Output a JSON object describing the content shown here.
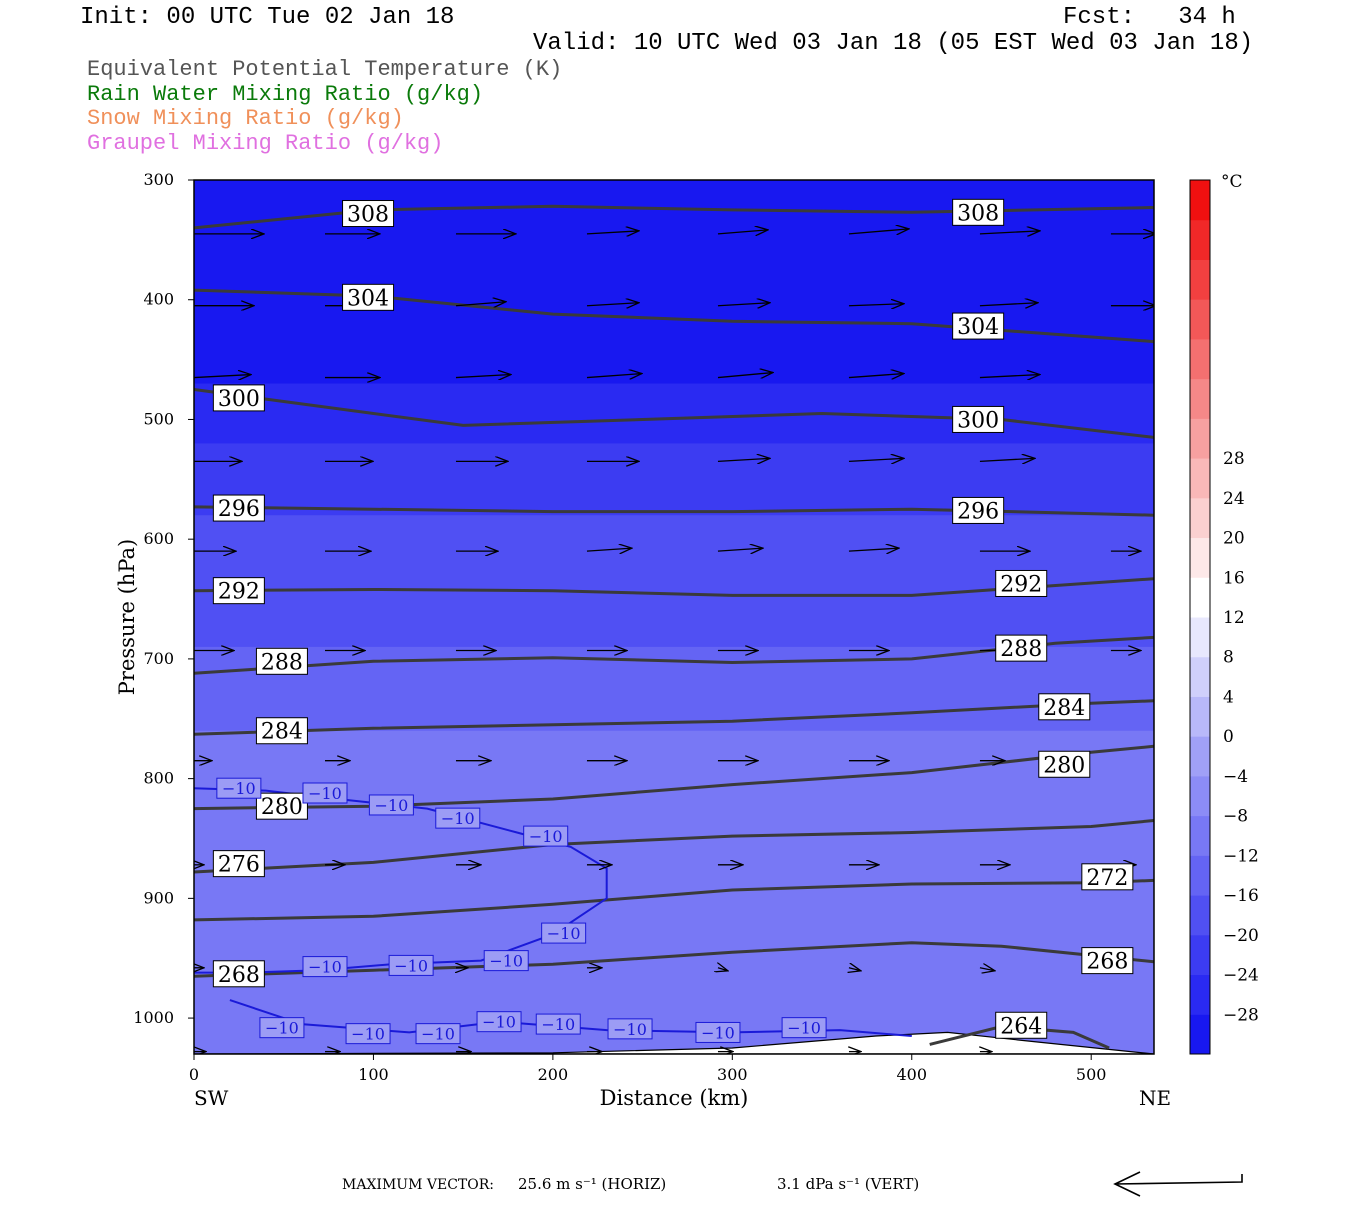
{
  "header": {
    "init": "Init: 00 UTC Tue 02 Jan 18",
    "fcst": "Fcst:   34 h",
    "valid": "Valid: 10 UTC Wed 03 Jan 18 (05 EST Wed 03 Jan 18)"
  },
  "legend": [
    {
      "label": "Equivalent Potential Temperature (K)",
      "color": "#555555"
    },
    {
      "label": "Rain Water Mixing Ratio (g/kg)",
      "color": "#0a7a0a"
    },
    {
      "label": "Snow Mixing Ratio (g/kg)",
      "color": "#f0905a"
    },
    {
      "label": "Graupel Mixing Ratio (g/kg)",
      "color": "#e070e0"
    }
  ],
  "chart_data": {
    "type": "contour cross-section",
    "xlabel": "Distance (km)",
    "ylabel": "Pressure (hPa)",
    "xlim": [
      0,
      535
    ],
    "ylim": [
      300,
      1030
    ],
    "y_scale": "linear, inverted",
    "x_ticks": [
      "0",
      "100",
      "200",
      "300",
      "400",
      "500"
    ],
    "y_ticks": [
      "300",
      "400",
      "500",
      "600",
      "700",
      "800",
      "900",
      "1000"
    ],
    "x_endpoints": {
      "left": "SW",
      "right": "NE"
    },
    "colorbar": {
      "unit": "°C",
      "levels": [
        -32,
        -28,
        -24,
        -20,
        -16,
        -12,
        -8,
        -4,
        0,
        4,
        8,
        12,
        16,
        20,
        24,
        28,
        32
      ],
      "tick_labels": [
        "28",
        "24",
        "20",
        "16",
        "12",
        "8",
        "4",
        "0",
        "−4",
        "−8",
        "−12",
        "−16",
        "−20",
        "−24",
        "−28"
      ],
      "colors": [
        "#1818f0",
        "#2a2af2",
        "#3c3cf2",
        "#5050f3",
        "#6464f4",
        "#7878f5",
        "#8c8cf6",
        "#a0a0f7",
        "#b8b8f9",
        "#d0d0fb",
        "#e8e8fd",
        "#ffffff",
        "#fde8e8",
        "#fbd0d0",
        "#f9b8b8",
        "#f7a0a0",
        "#f58888",
        "#f47070",
        "#f35858",
        "#f24040",
        "#f12828",
        "#f01010"
      ]
    },
    "temperature_bands": [
      {
        "p_top": 300,
        "p_bottom": 470,
        "temp_c": -30
      },
      {
        "p_top": 470,
        "p_bottom": 520,
        "temp_c": -28
      },
      {
        "p_top": 520,
        "p_bottom": 580,
        "temp_c": -24
      },
      {
        "p_top": 580,
        "p_bottom": 640,
        "temp_c": -20
      },
      {
        "p_top": 640,
        "p_bottom": 690,
        "temp_c": -17
      },
      {
        "p_top": 690,
        "p_bottom": 760,
        "temp_c": -14
      },
      {
        "p_top": 760,
        "p_bottom": 810,
        "temp_c": -12
      },
      {
        "p_top": 810,
        "p_bottom": 920,
        "temp_c": -9
      },
      {
        "p_top": 920,
        "p_bottom": 1030,
        "temp_c": -11
      }
    ],
    "theta_e_contours": [
      {
        "level": "308",
        "x": [
          0,
          100,
          200,
          300,
          400,
          535
        ],
        "p": [
          340,
          325,
          322,
          325,
          327,
          323
        ],
        "labels": [
          {
            "x": 97,
            "p": 328
          },
          {
            "x": 437,
            "p": 327
          }
        ]
      },
      {
        "level": "304",
        "x": [
          0,
          100,
          200,
          300,
          400,
          535
        ],
        "p": [
          392,
          397,
          412,
          418,
          420,
          435
        ],
        "labels": [
          {
            "x": 97,
            "p": 398
          },
          {
            "x": 437,
            "p": 422
          }
        ]
      },
      {
        "level": "300",
        "x": [
          0,
          50,
          150,
          250,
          350,
          450,
          535
        ],
        "p": [
          475,
          485,
          505,
          500,
          495,
          500,
          515
        ],
        "labels": [
          {
            "x": 25,
            "p": 482
          },
          {
            "x": 437,
            "p": 500
          }
        ]
      },
      {
        "level": "296",
        "x": [
          0,
          100,
          200,
          300,
          400,
          535
        ],
        "p": [
          573,
          575,
          577,
          577,
          575,
          580
        ],
        "labels": [
          {
            "x": 25,
            "p": 574
          },
          {
            "x": 437,
            "p": 576
          }
        ]
      },
      {
        "level": "292",
        "x": [
          0,
          100,
          200,
          300,
          400,
          535
        ],
        "p": [
          643,
          642,
          643,
          647,
          647,
          633
        ],
        "labels": [
          {
            "x": 25,
            "p": 643
          },
          {
            "x": 461,
            "p": 637
          }
        ]
      },
      {
        "level": "288",
        "x": [
          0,
          100,
          200,
          300,
          400,
          480,
          535
        ],
        "p": [
          712,
          702,
          699,
          703,
          700,
          687,
          682
        ],
        "labels": [
          {
            "x": 49,
            "p": 702
          },
          {
            "x": 461,
            "p": 691
          }
        ]
      },
      {
        "level": "284",
        "x": [
          0,
          100,
          200,
          300,
          400,
          500,
          535
        ],
        "p": [
          763,
          758,
          755,
          752,
          745,
          737,
          735
        ],
        "labels": [
          {
            "x": 49,
            "p": 760
          },
          {
            "x": 485,
            "p": 740
          }
        ]
      },
      {
        "level": "280",
        "x": [
          0,
          100,
          200,
          300,
          400,
          500,
          535
        ],
        "p": [
          825,
          823,
          817,
          805,
          795,
          778,
          773
        ],
        "labels": [
          {
            "x": 49,
            "p": 823
          },
          {
            "x": 485,
            "p": 788
          }
        ]
      },
      {
        "level": "276",
        "x": [
          0,
          100,
          200,
          300,
          400,
          500,
          535
        ],
        "p": [
          878,
          870,
          855,
          848,
          845,
          840,
          835
        ],
        "labels": [
          {
            "x": 25,
            "p": 871
          }
        ]
      },
      {
        "level": "272",
        "x": [
          0,
          100,
          200,
          300,
          400,
          500,
          535
        ],
        "p": [
          918,
          915,
          905,
          893,
          888,
          887,
          885
        ],
        "labels": [
          {
            "x": 509,
            "p": 882
          }
        ]
      },
      {
        "level": "268",
        "x": [
          0,
          100,
          200,
          300,
          400,
          450,
          535
        ],
        "p": [
          965,
          960,
          955,
          945,
          937,
          940,
          953
        ],
        "labels": [
          {
            "x": 25,
            "p": 963
          },
          {
            "x": 509,
            "p": 952
          }
        ]
      },
      {
        "level": "264",
        "x": [
          410,
          450,
          490,
          510
        ],
        "p": [
          1022,
          1007,
          1012,
          1025
        ],
        "labels": [
          {
            "x": 461,
            "p": 1006
          }
        ]
      }
    ],
    "isotherm_minus10": {
      "level": "−10",
      "segments": [
        {
          "x": [
            0,
            40,
            80,
            130,
            180,
            210,
            230,
            230,
            200,
            160,
            110,
            70,
            30,
            0
          ],
          "p": [
            808,
            810,
            817,
            825,
            845,
            857,
            875,
            900,
            930,
            952,
            955,
            960,
            962,
            962
          ]
        },
        {
          "x": [
            20,
            60,
            120,
            170,
            230,
            300,
            360,
            400
          ],
          "p": [
            985,
            1005,
            1012,
            1003,
            1010,
            1012,
            1010,
            1015
          ]
        }
      ],
      "labels": [
        {
          "x": 25,
          "p": 808
        },
        {
          "x": 73,
          "p": 812
        },
        {
          "x": 110,
          "p": 822
        },
        {
          "x": 147,
          "p": 833
        },
        {
          "x": 196,
          "p": 848
        },
        {
          "x": 206,
          "p": 929
        },
        {
          "x": 174,
          "p": 952
        },
        {
          "x": 73,
          "p": 957
        },
        {
          "x": 121,
          "p": 956
        },
        {
          "x": 49,
          "p": 1008
        },
        {
          "x": 97,
          "p": 1013
        },
        {
          "x": 136,
          "p": 1013
        },
        {
          "x": 170,
          "p": 1003
        },
        {
          "x": 203,
          "p": 1005
        },
        {
          "x": 243,
          "p": 1009
        },
        {
          "x": 292,
          "p": 1012
        },
        {
          "x": 340,
          "p": 1008
        }
      ]
    },
    "terrain": {
      "x": [
        0,
        200,
        300,
        380,
        420,
        470,
        535
      ],
      "p": [
        1030,
        1029,
        1025,
        1015,
        1012,
        1020,
        1030
      ]
    },
    "wind_rows": [
      {
        "p": 345,
        "x": [
          0,
          73,
          146,
          219,
          292,
          365,
          438,
          511
        ],
        "dx": [
          70,
          55,
          60,
          52,
          50,
          60,
          60,
          45
        ],
        "dp": [
          0,
          0,
          0,
          -3,
          -4,
          -5,
          -3,
          0
        ]
      },
      {
        "p": 405,
        "x": [
          0,
          73,
          146,
          219,
          292,
          365,
          438,
          511
        ],
        "dx": [
          60,
          43,
          50,
          52,
          52,
          55,
          58,
          45
        ],
        "dp": [
          0,
          0,
          -4,
          -3,
          -3,
          -2,
          -3,
          0
        ]
      },
      {
        "p": 465,
        "x": [
          0,
          73,
          146,
          219,
          292,
          365,
          438
        ],
        "dx": [
          57,
          55,
          55,
          55,
          55,
          55,
          60
        ],
        "dp": [
          -3,
          0,
          -3,
          -4,
          -5,
          -4,
          -3
        ]
      },
      {
        "p": 535,
        "x": [
          0,
          73,
          146,
          219,
          292,
          365,
          438
        ],
        "dx": [
          48,
          48,
          52,
          52,
          52,
          55,
          55
        ],
        "dp": [
          0,
          0,
          0,
          0,
          -3,
          -3,
          -3
        ]
      },
      {
        "p": 610,
        "x": [
          0,
          73,
          146,
          219,
          292,
          365,
          438,
          511
        ],
        "dx": [
          42,
          46,
          42,
          45,
          45,
          50,
          50,
          30
        ],
        "dp": [
          0,
          0,
          0,
          -3,
          -3,
          -3,
          0,
          0
        ]
      },
      {
        "p": 693,
        "x": [
          0,
          73,
          146,
          219,
          292,
          365,
          438,
          511
        ],
        "dx": [
          40,
          40,
          40,
          40,
          40,
          40,
          40,
          30
        ],
        "dp": [
          0,
          0,
          0,
          0,
          0,
          0,
          0,
          0
        ]
      },
      {
        "p": 785,
        "x": [
          0,
          73,
          146,
          219,
          292,
          365,
          438
        ],
        "dx": [
          18,
          25,
          35,
          40,
          40,
          40,
          25
        ],
        "dp": [
          0,
          0,
          0,
          0,
          0,
          0,
          0
        ]
      },
      {
        "p": 872,
        "x": [
          0,
          73,
          146,
          219,
          292,
          365,
          438,
          511
        ],
        "dx": [
          10,
          20,
          25,
          25,
          25,
          30,
          30,
          25
        ],
        "dp": [
          0,
          0,
          0,
          0,
          0,
          0,
          0,
          0
        ]
      },
      {
        "p": 958,
        "x": [
          0,
          73,
          146,
          219,
          292,
          365,
          438
        ],
        "dx": [
          10,
          12,
          12,
          15,
          10,
          12,
          15
        ],
        "dp": [
          0,
          0,
          0,
          0,
          3,
          3,
          3
        ]
      },
      {
        "p": 1028,
        "x": [
          0,
          73,
          146,
          219,
          292,
          365,
          438
        ],
        "dx": [
          12,
          15,
          15,
          15,
          15,
          12,
          12
        ],
        "dp": [
          0,
          0,
          0,
          0,
          0,
          0,
          0
        ]
      }
    ]
  },
  "footer": {
    "max_vector_label": "MAXIMUM VECTOR:",
    "max_vector_horiz": "25.6 m s⁻¹ (HORIZ)",
    "max_vector_vert": "3.1 dPa s⁻¹ (VERT)"
  }
}
